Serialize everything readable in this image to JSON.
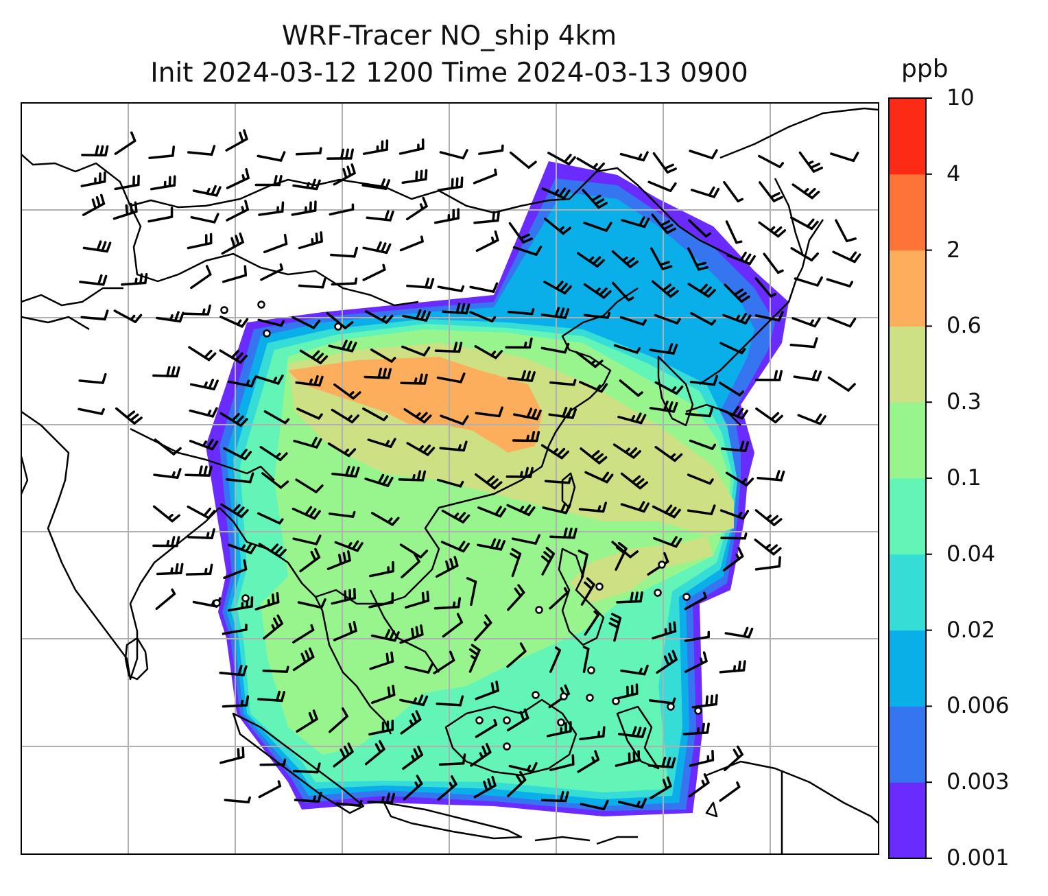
{
  "title": {
    "line1": "WRF-Tracer NO_ship 4km",
    "line2": "Init 2024-03-12 1200 Time 2024-03-13 0900"
  },
  "colorbar": {
    "unit": "ppb",
    "levels": [
      "0.001",
      "0.003",
      "0.006",
      "0.02",
      "0.04",
      "0.1",
      "0.3",
      "0.6",
      "2",
      "4",
      "10"
    ],
    "colors": [
      "#6a2bff",
      "#3575f0",
      "#0aaee8",
      "#35ddd6",
      "#63f5b8",
      "#98f58e",
      "#cde084",
      "#fdae5c",
      "#fd7438",
      "#fd2b16"
    ]
  },
  "map": {
    "land_color": "#ffffff",
    "gridline_color": "#b0b0b0",
    "coastline_color": "#000000",
    "wind_barb_color": "#000000"
  }
}
